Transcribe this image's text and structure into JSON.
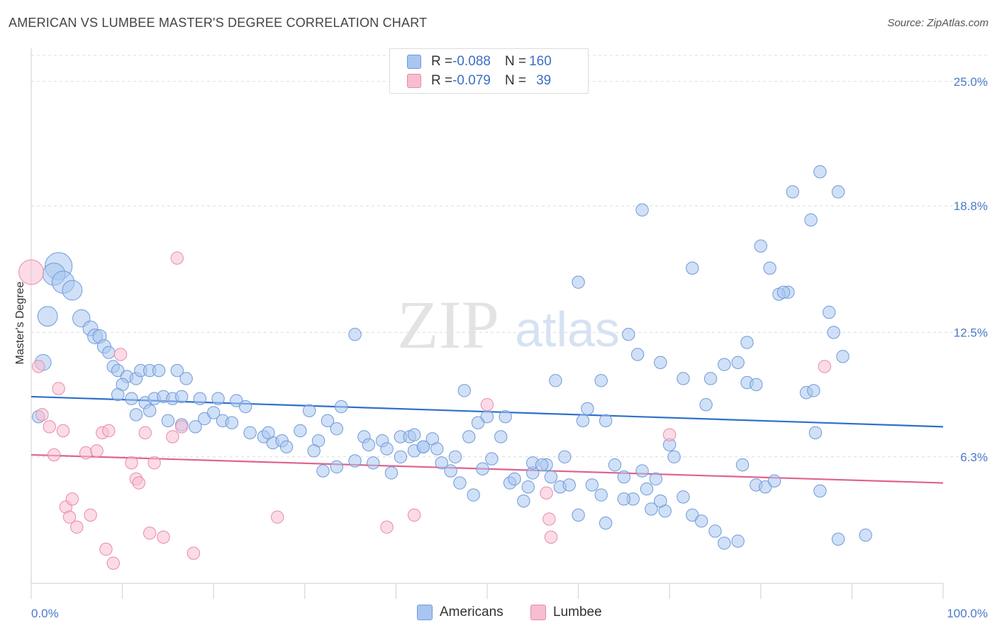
{
  "title": "AMERICAN VS LUMBEE MASTER'S DEGREE CORRELATION CHART",
  "source": "Source: ZipAtlas.com",
  "watermark": {
    "zip": "ZIP",
    "atlas": "atlas"
  },
  "legend": {
    "rows": [
      {
        "r_label": "R = ",
        "r_value": "-0.088",
        "n_label": "N = ",
        "n_value": "160",
        "color": "#a9c6f0",
        "border": "#6f9ad8"
      },
      {
        "r_label": "R = ",
        "r_value": "-0.079",
        "n_label": "N = ",
        "n_value": "39",
        "color": "#f7bdd0",
        "border": "#e88aaa"
      }
    ]
  },
  "bottom_legend": [
    {
      "label": "Americans",
      "color": "#a9c6f0",
      "border": "#6f9ad8"
    },
    {
      "label": "Lumbee",
      "color": "#f7bdd0",
      "border": "#e88aaa"
    }
  ],
  "chart_data": {
    "type": "scatter",
    "title": "AMERICAN VS LUMBEE MASTER'S DEGREE CORRELATION CHART",
    "xlabel": "",
    "ylabel": "Master's Degree",
    "xlim": [
      0,
      100
    ],
    "ylim": [
      0,
      26.3
    ],
    "y_ticks": [
      {
        "value": 6.3,
        "label": "6.3%"
      },
      {
        "value": 12.5,
        "label": "12.5%"
      },
      {
        "value": 18.8,
        "label": "18.8%"
      },
      {
        "value": 25.0,
        "label": "25.0%"
      }
    ],
    "x_tick_labels": [
      {
        "value": 0,
        "label": "0.0%"
      },
      {
        "value": 100,
        "label": "100.0%"
      }
    ],
    "grid": "horizontal dashed",
    "series": [
      {
        "name": "Americans",
        "color": "#a9c6f0",
        "stroke": "#6f9ad8",
        "trend": {
          "x": [
            0,
            100
          ],
          "y": [
            9.3,
            7.8
          ],
          "color": "#2f6fcc"
        },
        "points": [
          [
            3,
            15.8,
            22
          ],
          [
            2.5,
            15.4,
            18
          ],
          [
            3.5,
            15.0,
            18
          ],
          [
            4.5,
            14.6,
            16
          ],
          [
            1.8,
            13.3,
            16
          ],
          [
            5.5,
            13.2,
            14
          ],
          [
            6.5,
            12.7,
            12
          ],
          [
            7.0,
            12.3,
            12
          ],
          [
            7.5,
            12.3,
            11
          ],
          [
            8.0,
            11.8,
            11
          ],
          [
            8.5,
            11.5,
            10
          ],
          [
            1.3,
            11.0,
            13
          ],
          [
            9.0,
            10.8,
            10
          ],
          [
            9.5,
            10.6,
            10
          ],
          [
            10.5,
            10.3,
            10
          ],
          [
            10.0,
            9.9,
            10
          ],
          [
            11.5,
            10.2,
            10
          ],
          [
            12.0,
            10.6,
            10
          ],
          [
            13.0,
            10.6,
            10
          ],
          [
            14.0,
            10.6,
            10
          ],
          [
            16.0,
            10.6,
            10
          ],
          [
            17.0,
            10.2,
            10
          ],
          [
            9.5,
            9.4,
            10
          ],
          [
            11.0,
            9.2,
            10
          ],
          [
            12.5,
            9.0,
            10
          ],
          [
            13.5,
            9.2,
            10
          ],
          [
            14.5,
            9.3,
            10
          ],
          [
            15.5,
            9.2,
            10
          ],
          [
            16.5,
            9.3,
            10
          ],
          [
            18.5,
            9.2,
            10
          ],
          [
            20.5,
            9.2,
            10
          ],
          [
            22.5,
            9.1,
            10
          ],
          [
            23.5,
            8.8,
            10
          ],
          [
            0.8,
            8.3,
            10
          ],
          [
            11.5,
            8.4,
            10
          ],
          [
            13.0,
            8.6,
            10
          ],
          [
            15.0,
            8.1,
            10
          ],
          [
            16.5,
            7.9,
            10
          ],
          [
            18.0,
            7.8,
            10
          ],
          [
            19.0,
            8.2,
            10
          ],
          [
            20.0,
            8.5,
            10
          ],
          [
            21.0,
            8.1,
            10
          ],
          [
            22.0,
            8.0,
            10
          ],
          [
            24.0,
            7.5,
            10
          ],
          [
            25.5,
            7.3,
            10
          ],
          [
            26.5,
            7.0,
            10
          ],
          [
            27.5,
            7.1,
            10
          ],
          [
            29.5,
            7.6,
            10
          ],
          [
            30.5,
            8.6,
            10
          ],
          [
            31.5,
            7.1,
            10
          ],
          [
            32.5,
            8.1,
            10
          ],
          [
            33.5,
            7.7,
            10
          ],
          [
            34.0,
            8.8,
            10
          ],
          [
            35.5,
            12.4,
            10
          ],
          [
            35.5,
            6.1,
            10
          ],
          [
            36.5,
            7.3,
            10
          ],
          [
            37.0,
            6.9,
            10
          ],
          [
            38.5,
            7.1,
            10
          ],
          [
            39.0,
            6.7,
            10
          ],
          [
            40.5,
            7.3,
            10
          ],
          [
            41.5,
            7.3,
            10
          ],
          [
            42.0,
            6.6,
            10
          ],
          [
            43.0,
            6.8,
            10
          ],
          [
            44.0,
            7.2,
            10
          ],
          [
            45.0,
            6.0,
            10
          ],
          [
            46.0,
            5.6,
            10
          ],
          [
            47.0,
            5.0,
            10
          ],
          [
            47.5,
            9.6,
            10
          ],
          [
            48.5,
            4.4,
            10
          ],
          [
            49.0,
            8.0,
            10
          ],
          [
            49.5,
            5.7,
            10
          ],
          [
            50.5,
            6.2,
            10
          ],
          [
            50.0,
            8.3,
            10
          ],
          [
            51.5,
            7.3,
            10
          ],
          [
            52.5,
            5.0,
            10
          ],
          [
            53.0,
            5.2,
            10
          ],
          [
            54.0,
            4.1,
            10
          ],
          [
            55.0,
            5.5,
            10
          ],
          [
            55.0,
            6.0,
            10
          ],
          [
            56.5,
            5.9,
            10
          ],
          [
            57.0,
            5.3,
            10
          ],
          [
            57.5,
            10.1,
            10
          ],
          [
            58.0,
            4.8,
            10
          ],
          [
            59.0,
            4.9,
            10
          ],
          [
            60.0,
            3.4,
            10
          ],
          [
            60.5,
            8.1,
            10
          ],
          [
            61.0,
            8.7,
            10
          ],
          [
            61.5,
            4.9,
            10
          ],
          [
            62.5,
            4.4,
            10
          ],
          [
            63.0,
            3.0,
            10
          ],
          [
            64.0,
            5.9,
            10
          ],
          [
            65.0,
            5.3,
            10
          ],
          [
            65.5,
            12.4,
            10
          ],
          [
            66.0,
            4.2,
            10
          ],
          [
            67.0,
            5.6,
            10
          ],
          [
            67.5,
            4.7,
            10
          ],
          [
            68.0,
            3.7,
            10
          ],
          [
            69.5,
            3.6,
            10
          ],
          [
            70.0,
            6.9,
            10
          ],
          [
            70.5,
            6.3,
            10
          ],
          [
            71.5,
            4.3,
            10
          ],
          [
            72.5,
            3.4,
            10
          ],
          [
            73.5,
            3.1,
            10
          ],
          [
            74.0,
            8.9,
            10
          ],
          [
            75.0,
            2.6,
            10
          ],
          [
            76.0,
            2.0,
            10
          ],
          [
            77.5,
            2.1,
            10
          ],
          [
            78.0,
            5.9,
            10
          ],
          [
            79.5,
            4.9,
            10
          ],
          [
            80.5,
            4.8,
            10
          ],
          [
            81.5,
            5.1,
            10
          ],
          [
            83.0,
            14.5,
            10
          ],
          [
            83.5,
            19.5,
            10
          ],
          [
            85.5,
            18.1,
            10
          ],
          [
            86.0,
            7.5,
            10
          ],
          [
            86.5,
            4.6,
            10
          ],
          [
            87.5,
            13.5,
            10
          ],
          [
            88.5,
            2.2,
            10
          ],
          [
            89.0,
            11.3,
            10
          ],
          [
            72.5,
            15.7,
            10
          ],
          [
            80.0,
            16.8,
            10
          ],
          [
            81.0,
            15.7,
            10
          ],
          [
            82.0,
            14.4,
            10
          ],
          [
            82.5,
            14.5,
            10
          ],
          [
            78.5,
            10.0,
            10
          ],
          [
            79.5,
            9.9,
            10
          ],
          [
            74.5,
            10.2,
            10
          ],
          [
            76.0,
            10.9,
            10
          ],
          [
            77.5,
            11.0,
            10
          ],
          [
            78.5,
            12.0,
            10
          ],
          [
            88.0,
            12.5,
            10
          ],
          [
            86.5,
            20.5,
            10
          ],
          [
            88.5,
            19.5,
            10
          ],
          [
            67.0,
            18.6,
            10
          ],
          [
            60.0,
            15.0,
            10
          ],
          [
            62.5,
            10.1,
            10
          ],
          [
            66.5,
            11.4,
            10
          ],
          [
            69.0,
            11.0,
            10
          ],
          [
            71.5,
            10.2,
            10
          ],
          [
            63.0,
            8.1,
            10
          ],
          [
            68.5,
            5.2,
            10
          ],
          [
            69.0,
            4.1,
            10
          ],
          [
            65.0,
            4.2,
            10
          ],
          [
            58.5,
            6.3,
            10
          ],
          [
            56.0,
            5.9,
            10
          ],
          [
            54.5,
            4.8,
            10
          ],
          [
            52.0,
            8.3,
            10
          ],
          [
            48.0,
            7.3,
            10
          ],
          [
            46.5,
            6.3,
            10
          ],
          [
            44.5,
            6.7,
            10
          ],
          [
            43.0,
            6.8,
            10
          ],
          [
            42.0,
            7.4,
            10
          ],
          [
            40.5,
            6.3,
            10
          ],
          [
            39.5,
            5.5,
            10
          ],
          [
            37.5,
            6.0,
            10
          ],
          [
            33.5,
            5.8,
            10
          ],
          [
            32.0,
            5.6,
            10
          ],
          [
            31.0,
            6.6,
            10
          ],
          [
            28.0,
            6.8,
            10
          ],
          [
            26.0,
            7.5,
            10
          ],
          [
            85.0,
            9.5,
            10
          ],
          [
            85.8,
            9.6,
            10
          ],
          [
            91.5,
            2.4,
            10
          ]
        ]
      },
      {
        "name": "Lumbee",
        "color": "#f7bdd0",
        "stroke": "#e88aaa",
        "trend": {
          "x": [
            0,
            100
          ],
          "y": [
            6.4,
            5.0
          ],
          "color": "#e0628f"
        },
        "points": [
          [
            0,
            15.5,
            20
          ],
          [
            0.8,
            10.8,
            10
          ],
          [
            1.2,
            8.4,
            10
          ],
          [
            2.0,
            7.8,
            10
          ],
          [
            2.5,
            6.4,
            10
          ],
          [
            3.0,
            9.7,
            10
          ],
          [
            3.5,
            7.6,
            10
          ],
          [
            3.8,
            3.8,
            10
          ],
          [
            4.2,
            3.3,
            10
          ],
          [
            4.5,
            4.2,
            10
          ],
          [
            5.0,
            2.8,
            10
          ],
          [
            6.0,
            6.5,
            10
          ],
          [
            6.5,
            3.4,
            10
          ],
          [
            7.2,
            6.6,
            10
          ],
          [
            7.8,
            7.5,
            10
          ],
          [
            8.2,
            1.7,
            10
          ],
          [
            8.5,
            7.6,
            10
          ],
          [
            9.0,
            1.0,
            10
          ],
          [
            9.8,
            11.4,
            10
          ],
          [
            11.0,
            6.0,
            10
          ],
          [
            11.5,
            5.2,
            10
          ],
          [
            11.8,
            5.0,
            10
          ],
          [
            12.5,
            7.5,
            10
          ],
          [
            13.0,
            2.5,
            10
          ],
          [
            13.5,
            6.0,
            10
          ],
          [
            14.5,
            2.3,
            10
          ],
          [
            15.5,
            7.3,
            10
          ],
          [
            16.5,
            7.8,
            10
          ],
          [
            17.8,
            1.5,
            10
          ],
          [
            16.0,
            16.2,
            10
          ],
          [
            27.0,
            3.3,
            10
          ],
          [
            39.0,
            2.8,
            10
          ],
          [
            42.0,
            3.4,
            10
          ],
          [
            50.0,
            8.9,
            10
          ],
          [
            56.5,
            4.5,
            10
          ],
          [
            56.8,
            3.2,
            10
          ],
          [
            57.0,
            2.3,
            10
          ],
          [
            70.0,
            7.4,
            10
          ],
          [
            87.0,
            10.8,
            10
          ]
        ]
      }
    ]
  }
}
